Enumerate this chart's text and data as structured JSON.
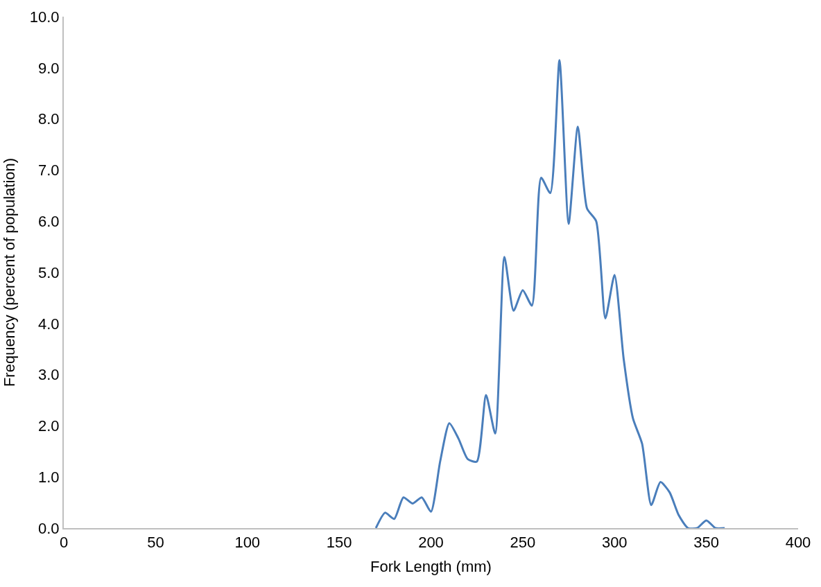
{
  "chart_data": {
    "type": "line",
    "xlabel": "Fork Length (mm)",
    "ylabel": "Frequency (percent of population)",
    "x": [
      170,
      175,
      180,
      185,
      190,
      195,
      200,
      205,
      210,
      215,
      220,
      225,
      230,
      235,
      240,
      245,
      250,
      255,
      260,
      265,
      270,
      275,
      280,
      285,
      290,
      295,
      300,
      305,
      310,
      315,
      320,
      325,
      330,
      335,
      340,
      345,
      350,
      355,
      360
    ],
    "series": [
      {
        "color": "#4a7ebb",
        "values": [
          0,
          0.3,
          0.18,
          0.6,
          0.48,
          0.6,
          0.32,
          1.3,
          2.05,
          1.75,
          1.35,
          1.3,
          2.6,
          1.85,
          5.3,
          4.25,
          4.65,
          4.35,
          6.85,
          6.55,
          9.15,
          5.95,
          7.85,
          6.25,
          6.0,
          4.1,
          4.95,
          3.3,
          2.15,
          1.65,
          0.45,
          0.9,
          0.7,
          0.25,
          0,
          0,
          0.15,
          0,
          0
        ]
      }
    ],
    "xlim": [
      0,
      400
    ],
    "xticks": [
      0,
      50,
      100,
      150,
      200,
      250,
      300,
      350,
      400
    ],
    "ylim": [
      0,
      10
    ],
    "yticks": [
      {
        "value": 0,
        "label": "0.0"
      },
      {
        "value": 1,
        "label": "1.0"
      },
      {
        "value": 2,
        "label": "2.0"
      },
      {
        "value": 3,
        "label": "3.0"
      },
      {
        "value": 4,
        "label": "4.0"
      },
      {
        "value": 5,
        "label": "5.0"
      },
      {
        "value": 6,
        "label": "6.0"
      },
      {
        "value": 7,
        "label": "7.0"
      },
      {
        "value": 8,
        "label": "8.0"
      },
      {
        "value": 9,
        "label": "9.0"
      },
      {
        "value": 10,
        "label": "10.0"
      }
    ],
    "marker": "none",
    "line_style": "solid"
  }
}
